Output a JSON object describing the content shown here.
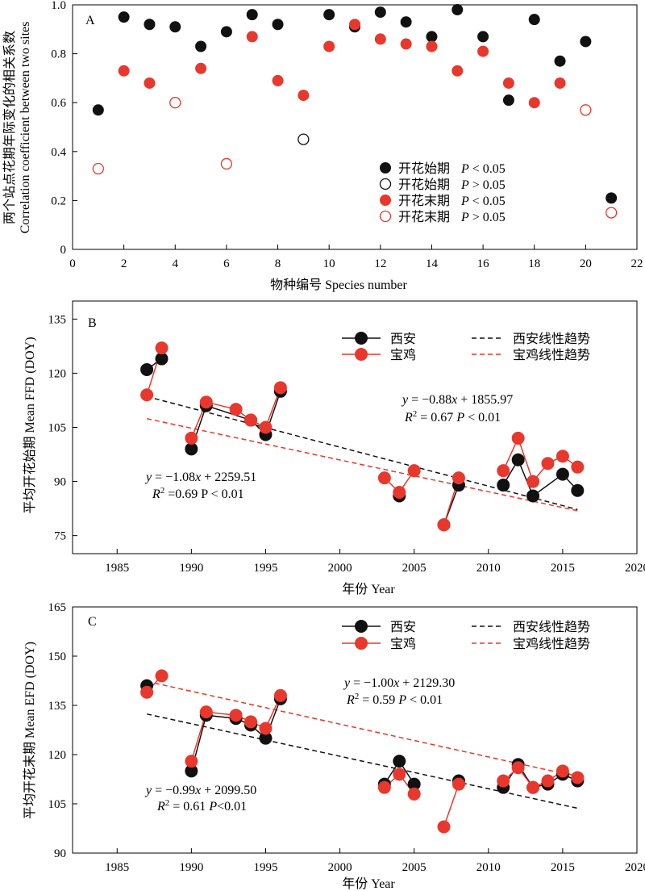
{
  "colors": {
    "black": "#111111",
    "red": "#e8382e"
  },
  "chart_data": [
    {
      "panel": "A",
      "type": "scatter",
      "xlabel": "物种编号 Species number",
      "ylabel_cn": "两个站点花期年际变化的相关系数",
      "ylabel_en": "Correlation coefficient between two sites",
      "xlim": [
        0,
        22
      ],
      "ylim": [
        0,
        1.0
      ],
      "xticks": [
        0,
        2,
        4,
        6,
        8,
        10,
        12,
        14,
        16,
        18,
        20,
        22
      ],
      "yticks": [
        0,
        0.2,
        0.4,
        0.6,
        0.8,
        1.0
      ],
      "ytick_labels": [
        "0",
        "0.2",
        "0.4",
        "0.6",
        "0.8",
        "1.0"
      ],
      "legend_position": "bottom-right",
      "series": [
        {
          "name": "开花始期",
          "p_label": "P < 0.05",
          "color": "#111111",
          "filled": true,
          "points": [
            [
              1,
              0.57
            ],
            [
              2,
              0.95
            ],
            [
              3,
              0.92
            ],
            [
              4,
              0.91
            ],
            [
              5,
              0.83
            ],
            [
              6,
              0.89
            ],
            [
              7,
              0.96
            ],
            [
              8,
              0.92
            ],
            [
              10,
              0.96
            ],
            [
              11,
              0.91
            ],
            [
              12,
              0.97
            ],
            [
              13,
              0.93
            ],
            [
              14,
              0.87
            ],
            [
              15,
              0.98
            ],
            [
              16,
              0.87
            ],
            [
              17,
              0.61
            ],
            [
              18,
              0.94
            ],
            [
              19,
              0.77
            ],
            [
              20,
              0.85
            ],
            [
              21,
              0.21
            ]
          ]
        },
        {
          "name": "开花始期",
          "p_label": "P > 0.05",
          "color": "#111111",
          "filled": false,
          "points": [
            [
              9,
              0.45
            ]
          ]
        },
        {
          "name": "开花末期",
          "p_label": "P < 0.05",
          "color": "#e8382e",
          "filled": true,
          "points": [
            [
              2,
              0.73
            ],
            [
              3,
              0.68
            ],
            [
              5,
              0.74
            ],
            [
              7,
              0.87
            ],
            [
              8,
              0.69
            ],
            [
              9,
              0.63
            ],
            [
              10,
              0.83
            ],
            [
              11,
              0.92
            ],
            [
              12,
              0.86
            ],
            [
              13,
              0.84
            ],
            [
              14,
              0.83
            ],
            [
              15,
              0.73
            ],
            [
              16,
              0.81
            ],
            [
              17,
              0.68
            ],
            [
              18,
              0.6
            ],
            [
              19,
              0.68
            ]
          ]
        },
        {
          "name": "开花末期",
          "p_label": "P > 0.05",
          "color": "#e8382e",
          "filled": false,
          "points": [
            [
              1,
              0.33
            ],
            [
              4,
              0.6
            ],
            [
              6,
              0.35
            ],
            [
              20,
              0.57
            ],
            [
              21,
              0.15
            ]
          ]
        }
      ]
    },
    {
      "panel": "B",
      "type": "line",
      "xlabel": "年份 Year",
      "ylabel": "平均开花始期 Mean FFD (DOY)",
      "xlim": [
        1982,
        2020
      ],
      "ylim": [
        70,
        140
      ],
      "xticks": [
        1985,
        1990,
        1995,
        2000,
        2005,
        2010,
        2015,
        2020
      ],
      "yticks": [
        75,
        90,
        105,
        120,
        135
      ],
      "legend_position": "top-right",
      "series": [
        {
          "name": "西安",
          "color": "#111111",
          "marker": "black",
          "segments": [
            [
              [
                1987,
                121
              ],
              [
                1988,
                124
              ]
            ],
            [
              [
                1990,
                99
              ],
              [
                1991,
                111
              ],
              [
                1994,
                107
              ],
              [
                1995,
                103
              ],
              [
                1996,
                115
              ]
            ],
            [
              [
                2004,
                86
              ]
            ],
            [
              [
                2007,
                78
              ],
              [
                2008,
                89
              ]
            ],
            [
              [
                2011,
                89
              ],
              [
                2012,
                96
              ],
              [
                2013,
                86
              ],
              [
                2015,
                92
              ],
              [
                2016,
                87.5
              ]
            ]
          ],
          "trend": {
            "name": "西安线性趋势",
            "slope": -1.08,
            "intercept": 2259.51,
            "x_range": [
              1987,
              2016
            ]
          }
        },
        {
          "name": "宝鸡",
          "color": "#e8382e",
          "marker": "red",
          "segments": [
            [
              [
                1987,
                114
              ],
              [
                1988,
                127
              ]
            ],
            [
              [
                1990,
                102
              ],
              [
                1991,
                112
              ],
              [
                1993,
                110
              ],
              [
                1994,
                107
              ],
              [
                1995,
                105
              ],
              [
                1996,
                116
              ]
            ],
            [
              [
                2003,
                91
              ],
              [
                2004,
                87
              ],
              [
                2005,
                93
              ]
            ],
            [
              [
                2007,
                78
              ],
              [
                2008,
                91
              ]
            ],
            [
              [
                2011,
                93
              ],
              [
                2012,
                102
              ],
              [
                2013,
                90
              ],
              [
                2014,
                95
              ],
              [
                2015,
                97
              ],
              [
                2016,
                94
              ]
            ]
          ],
          "trend": {
            "name": "宝鸡线性趋势",
            "slope": -0.88,
            "intercept": 1855.97,
            "x_range": [
              1987,
              2016
            ]
          }
        }
      ]
    },
    {
      "panel": "C",
      "type": "line",
      "xlabel": "年份 Year",
      "ylabel": "平均开花末期 Mean EFD (DOY)",
      "xlim": [
        1982,
        2020
      ],
      "ylim": [
        90,
        165
      ],
      "xticks": [
        1985,
        1990,
        1995,
        2000,
        2005,
        2010,
        2015,
        2020
      ],
      "yticks": [
        90,
        105,
        120,
        135,
        150,
        165
      ],
      "legend_position": "top-right",
      "series": [
        {
          "name": "西安",
          "color": "#111111",
          "marker": "black",
          "segments": [
            [
              [
                1987,
                141
              ]
            ],
            [
              [
                1990,
                115
              ],
              [
                1991,
                132
              ],
              [
                1993,
                131
              ],
              [
                1994,
                129
              ],
              [
                1995,
                125
              ],
              [
                1996,
                137
              ]
            ],
            [
              [
                2003,
                111
              ],
              [
                2004,
                118
              ],
              [
                2005,
                111
              ]
            ],
            [
              [
                2008,
                112
              ]
            ],
            [
              [
                2011,
                110
              ],
              [
                2012,
                117
              ],
              [
                2013,
                110
              ],
              [
                2014,
                111
              ],
              [
                2015,
                114
              ],
              [
                2016,
                112
              ]
            ]
          ],
          "trend": {
            "name": "西安线性趋势",
            "slope": -0.99,
            "intercept": 2099.5,
            "x_range": [
              1987,
              2016
            ]
          }
        },
        {
          "name": "宝鸡",
          "color": "#e8382e",
          "marker": "red",
          "segments": [
            [
              [
                1987,
                139
              ],
              [
                1988,
                144
              ]
            ],
            [
              [
                1990,
                118
              ],
              [
                1991,
                133
              ],
              [
                1993,
                132
              ],
              [
                1994,
                130
              ],
              [
                1995,
                128
              ],
              [
                1996,
                138
              ]
            ],
            [
              [
                2003,
                110
              ],
              [
                2004,
                114
              ],
              [
                2005,
                108
              ]
            ],
            [
              [
                2007,
                98
              ],
              [
                2008,
                111
              ]
            ],
            [
              [
                2011,
                112
              ],
              [
                2012,
                116
              ],
              [
                2013,
                110
              ],
              [
                2014,
                112
              ],
              [
                2015,
                115
              ],
              [
                2016,
                113
              ]
            ]
          ],
          "trend": {
            "name": "宝鸡线性趋势",
            "slope": -1.0,
            "intercept": 2129.3,
            "x_range": [
              1987,
              2016
            ]
          }
        }
      ]
    }
  ],
  "panelB": {
    "label": "B",
    "legend": {
      "s1": "西安",
      "s2": "宝鸡",
      "t1": "西安线性趋势",
      "t2": "宝鸡线性趋势"
    },
    "eq_baoji": {
      "y": "y",
      "rest": " = −0.88",
      "x": "x",
      "tail": " + 1855.97"
    },
    "r2_baoji": {
      "r": "R",
      "sup": "2",
      "val": " = 0.67   ",
      "p": "P",
      "pval": " < 0.01"
    },
    "eq_xian": {
      "y": "y",
      "rest": " = −1.08",
      "x": "x",
      "tail": " + 2259.51"
    },
    "r2_xian": {
      "r": "R",
      "sup": "2",
      "val": " =0.69    P < 0.01"
    }
  },
  "panelC": {
    "label": "C",
    "legend": {
      "s1": "西安",
      "s2": "宝鸡",
      "t1": "西安线性趋势",
      "t2": "宝鸡线性趋势"
    },
    "eq_baoji": {
      "y": "y",
      "rest": " = −1.00",
      "x": "x",
      "tail": " + 2129.30"
    },
    "r2_baoji": {
      "r": "R",
      "sup": "2",
      "val": " = 0.59   ",
      "p": "P",
      "pval": " < 0.01"
    },
    "eq_xian": {
      "y": "y",
      "rest": " = −0.99",
      "x": "x",
      "tail": " + 2099.50"
    },
    "r2_xian": {
      "r": "R",
      "sup": "2",
      "val": " = 0.61   ",
      "p": "P",
      "pval": "<0.01"
    }
  }
}
